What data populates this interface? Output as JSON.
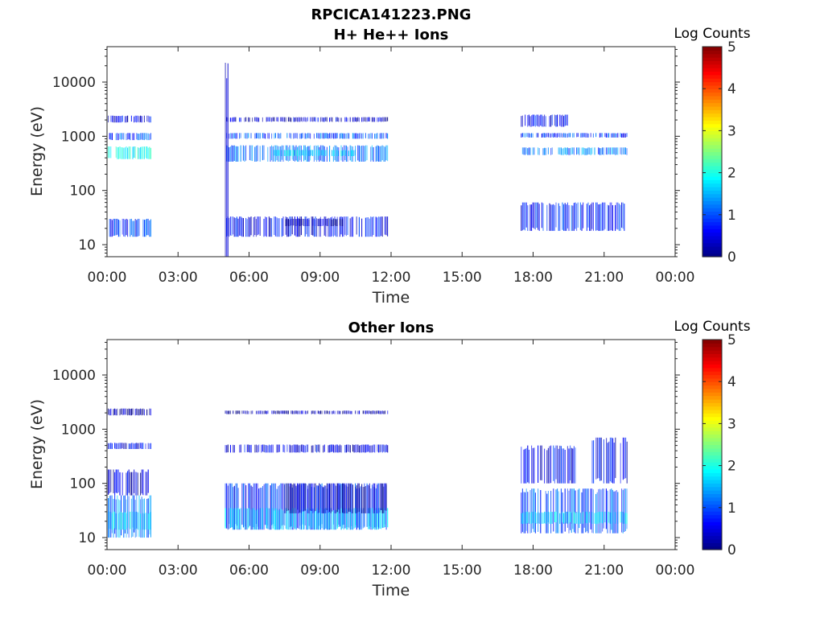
{
  "figure_title": "RPCICA141223.PNG",
  "chart_data": [
    {
      "type": "heatmap",
      "title": "H+ He++ Ions",
      "xlabel": "Time",
      "ylabel": "Energy (eV)",
      "y_scale": "log",
      "ylim": [
        6,
        45000
      ],
      "xlim": [
        "00:00",
        "00:00 (+1 day)"
      ],
      "x_ticks": [
        "00:00",
        "03:00",
        "06:00",
        "09:00",
        "12:00",
        "15:00",
        "18:00",
        "21:00",
        "00:00"
      ],
      "y_ticks": [
        "10",
        "100",
        "1000",
        "10000"
      ],
      "colorbar": {
        "label": "Log Counts",
        "min": 0,
        "max": 5,
        "ticks": [
          "0",
          "1",
          "2",
          "3",
          "4",
          "5"
        ],
        "colormap": "jet"
      },
      "bands": [
        {
          "t0": 0.0,
          "t1": 1.85,
          "e0": 14,
          "e1": 30,
          "level": 0.8
        },
        {
          "t0": 0.0,
          "t1": 1.85,
          "e0": 380,
          "e1": 650,
          "level": 1.8
        },
        {
          "t0": 0.0,
          "t1": 1.85,
          "e0": 850,
          "e1": 1150,
          "level": 1.0
        },
        {
          "t0": 0.0,
          "t1": 1.85,
          "e0": 1800,
          "e1": 2400,
          "level": 0.5
        },
        {
          "t0": 5.05,
          "t1": 11.9,
          "e0": 14,
          "e1": 33,
          "level": 0.6
        },
        {
          "t0": 7.5,
          "t1": 10.0,
          "e0": 22,
          "e1": 30,
          "level": 0.2
        },
        {
          "t0": 5.05,
          "t1": 11.9,
          "e0": 340,
          "e1": 680,
          "level": 1.2
        },
        {
          "t0": 7.0,
          "t1": 10.5,
          "e0": 430,
          "e1": 560,
          "level": 1.7
        },
        {
          "t0": 5.05,
          "t1": 11.9,
          "e0": 900,
          "e1": 1150,
          "level": 1.0
        },
        {
          "t0": 5.05,
          "t1": 11.9,
          "e0": 1850,
          "e1": 2250,
          "level": 0.4
        },
        {
          "t0": 5.0,
          "t1": 5.12,
          "e0": 6,
          "e1": 24000,
          "level": 0.1
        },
        {
          "t0": 17.5,
          "t1": 22.0,
          "e0": 18,
          "e1": 60,
          "level": 0.7
        },
        {
          "t0": 17.5,
          "t1": 22.0,
          "e0": 450,
          "e1": 620,
          "level": 1.2
        },
        {
          "t0": 17.5,
          "t1": 22.0,
          "e0": 950,
          "e1": 1150,
          "level": 0.9
        },
        {
          "t0": 17.5,
          "t1": 19.5,
          "e0": 1500,
          "e1": 2500,
          "level": 0.6
        }
      ]
    },
    {
      "type": "heatmap",
      "title": "Other Ions",
      "xlabel": "Time",
      "ylabel": "Energy (eV)",
      "y_scale": "log",
      "ylim": [
        6,
        45000
      ],
      "xlim": [
        "00:00",
        "00:00 (+1 day)"
      ],
      "x_ticks": [
        "00:00",
        "03:00",
        "06:00",
        "09:00",
        "12:00",
        "15:00",
        "18:00",
        "21:00",
        "00:00"
      ],
      "y_ticks": [
        "10",
        "100",
        "1000",
        "10000"
      ],
      "colorbar": {
        "label": "Log Counts",
        "min": 0,
        "max": 5,
        "ticks": [
          "0",
          "1",
          "2",
          "3",
          "4",
          "5"
        ],
        "colormap": "jet"
      },
      "bands": [
        {
          "t0": 0.0,
          "t1": 1.85,
          "e0": 10,
          "e1": 60,
          "level": 1.2
        },
        {
          "t0": 0.0,
          "t1": 1.85,
          "e0": 14,
          "e1": 30,
          "level": 1.6
        },
        {
          "t0": 0.0,
          "t1": 1.85,
          "e0": 60,
          "e1": 180,
          "level": 0.4
        },
        {
          "t0": 0.0,
          "t1": 1.85,
          "e0": 430,
          "e1": 560,
          "level": 0.6
        },
        {
          "t0": 0.0,
          "t1": 1.85,
          "e0": 1800,
          "e1": 2400,
          "level": 0.2
        },
        {
          "t0": 5.0,
          "t1": 11.9,
          "e0": 14,
          "e1": 100,
          "level": 0.8
        },
        {
          "t0": 5.0,
          "t1": 11.9,
          "e0": 14,
          "e1": 35,
          "level": 1.5
        },
        {
          "t0": 7.5,
          "t1": 11.9,
          "e0": 28,
          "e1": 100,
          "level": 0.3
        },
        {
          "t0": 5.0,
          "t1": 11.9,
          "e0": 370,
          "e1": 520,
          "level": 0.5
        },
        {
          "t0": 5.0,
          "t1": 11.9,
          "e0": 1900,
          "e1": 2200,
          "level": 0.2
        },
        {
          "t0": 17.5,
          "t1": 22.0,
          "e0": 12,
          "e1": 80,
          "level": 1.0
        },
        {
          "t0": 17.5,
          "t1": 22.0,
          "e0": 18,
          "e1": 30,
          "level": 1.6
        },
        {
          "t0": 17.5,
          "t1": 19.8,
          "e0": 100,
          "e1": 500,
          "level": 0.6
        },
        {
          "t0": 20.5,
          "t1": 22.0,
          "e0": 100,
          "e1": 700,
          "level": 0.5
        }
      ]
    }
  ]
}
